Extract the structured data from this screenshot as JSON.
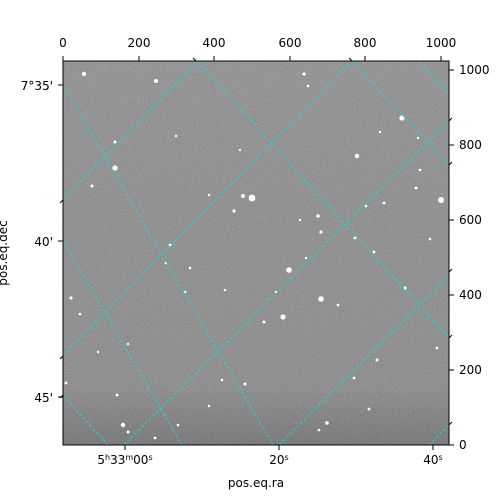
{
  "axes": {
    "xlabel": "pos.eq.ra",
    "ylabel": "pos.eq.dec",
    "top_ticks": [
      "0",
      "200",
      "400",
      "600",
      "800",
      "1000"
    ],
    "right_ticks": [
      "0",
      "200",
      "400",
      "600",
      "800",
      "1000"
    ],
    "ra_ticks": [
      {
        "h": "5",
        "m": "33",
        "s": "00"
      },
      {
        "h": "",
        "m": "",
        "s": "20"
      },
      {
        "h": "",
        "m": "",
        "s": "40"
      }
    ],
    "dec_ticks": [
      "7°35'",
      "40'",
      "45'"
    ]
  },
  "colors": {
    "grid": "#1fd6d6",
    "sky_dark": "#3a3a3a",
    "sky_mid": "#6e6e6e",
    "frame": "#000000"
  }
}
